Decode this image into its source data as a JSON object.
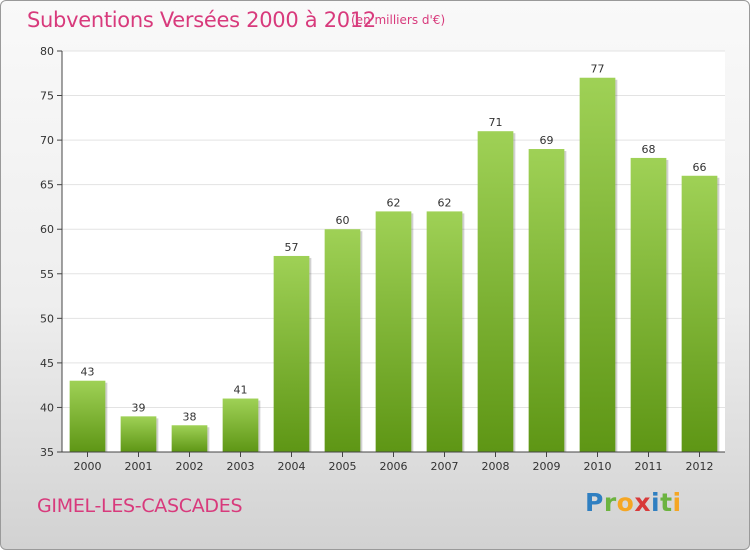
{
  "header": {
    "title": "Subventions Versées 2000 à 2012",
    "unit_note": "(en milliers d'€)"
  },
  "footer": {
    "place": "GIMEL-LES-CASCADES",
    "logo": "Proxiti"
  },
  "colors": {
    "title": "#d83a7c",
    "bar_top": "#9fd156",
    "bar_bottom": "#5e9615",
    "axis": "#444444",
    "grid": "#e3e3e3"
  },
  "chart_data": {
    "type": "bar",
    "categories": [
      "2000",
      "2001",
      "2002",
      "2003",
      "2004",
      "2005",
      "2006",
      "2007",
      "2008",
      "2009",
      "2010",
      "2011",
      "2012"
    ],
    "values": [
      43,
      39,
      38,
      41,
      57,
      60,
      62,
      62,
      71,
      69,
      77,
      68,
      66
    ],
    "title": "Subventions Versées 2000 à 2012",
    "subtitle": "(en milliers d'€)",
    "xlabel": "",
    "ylabel": "",
    "ylim": [
      35,
      80
    ],
    "yticks": [
      35,
      40,
      45,
      50,
      55,
      60,
      65,
      70,
      75,
      80
    ],
    "grid": true,
    "data_labels": true
  }
}
